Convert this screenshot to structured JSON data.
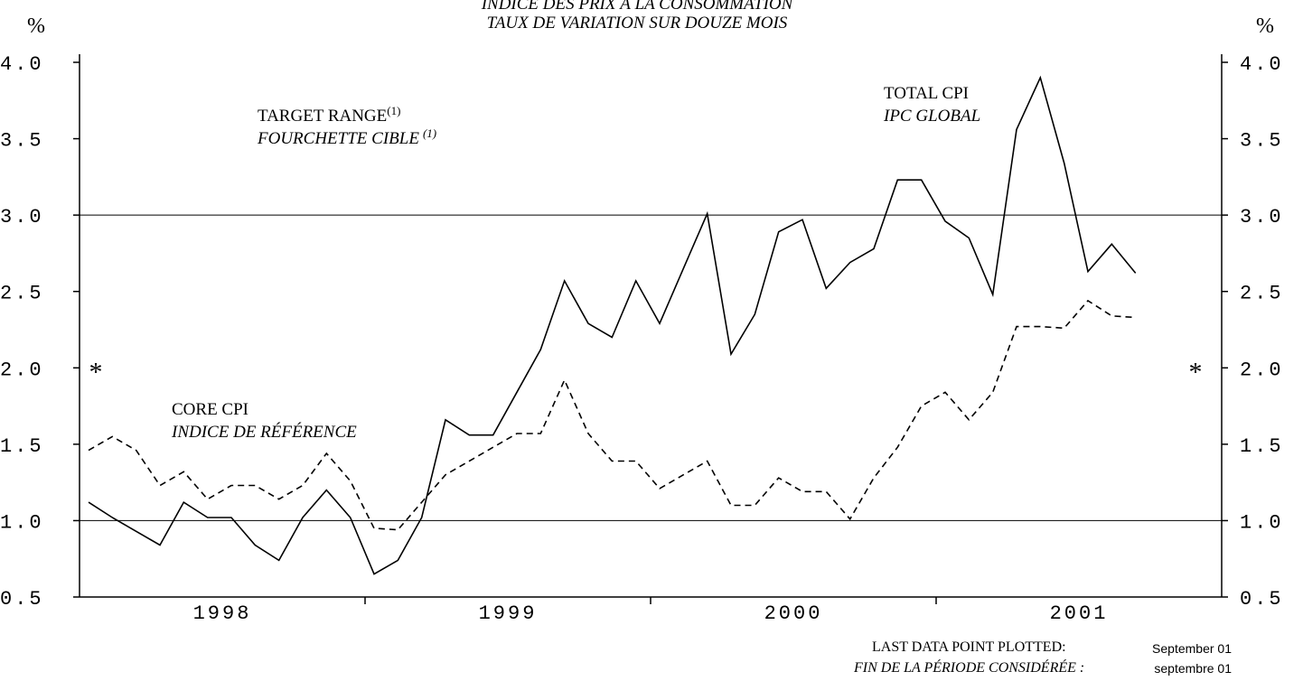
{
  "chart_data": {
    "type": "line",
    "title": "INDICE DES PRIX À LA CONSOMMATION",
    "subtitle": "TAUX DE VARIATION SUR DOUZE MOIS",
    "y_unit_left": "%",
    "y_unit_right": "%",
    "years": [
      "1998",
      "1999",
      "2000",
      "2001"
    ],
    "categories": [
      null,
      null,
      null,
      null,
      null,
      null,
      null,
      null,
      null,
      null,
      null,
      null,
      null,
      null,
      null,
      null,
      null,
      null,
      null,
      null,
      null,
      null,
      null,
      null,
      null,
      null,
      null,
      null,
      null,
      null,
      null,
      null,
      null,
      null,
      null,
      null,
      null,
      null,
      null,
      null,
      null,
      null,
      null,
      null,
      null
    ],
    "series": [
      {
        "name": "TOTAL CPI",
        "name_fr": "IPC GLOBAL",
        "color": "#000000",
        "dash": "solid",
        "values": [
          1.12,
          1.02,
          0.93,
          0.84,
          1.12,
          1.02,
          1.02,
          0.84,
          0.74,
          1.02,
          1.2,
          1.02,
          0.65,
          0.74,
          1.02,
          1.66,
          1.56,
          1.56,
          1.84,
          2.12,
          2.57,
          2.29,
          2.2,
          2.57,
          2.29,
          2.65,
          3.01,
          2.09,
          2.35,
          2.89,
          2.97,
          2.52,
          2.69,
          2.78,
          3.23,
          3.23,
          2.96,
          2.85,
          2.48,
          3.56,
          3.9,
          3.34,
          2.63,
          2.81,
          2.62
        ]
      },
      {
        "name": "CORE CPI",
        "name_fr": "INDICE DE RÉFÉRENCE",
        "color": "#000000",
        "dash": "dashed",
        "values": [
          1.46,
          1.55,
          1.46,
          1.23,
          1.32,
          1.14,
          1.23,
          1.23,
          1.14,
          1.23,
          1.44,
          1.26,
          0.95,
          0.94,
          1.12,
          1.3,
          1.39,
          1.48,
          1.57,
          1.57,
          1.92,
          1.57,
          1.39,
          1.39,
          1.21,
          1.3,
          1.39,
          1.1,
          1.1,
          1.28,
          1.19,
          1.19,
          1.01,
          1.28,
          1.48,
          1.75,
          1.84,
          1.66,
          1.84,
          2.27,
          2.27,
          2.26,
          2.44,
          2.34,
          2.33
        ]
      }
    ],
    "target_range": [
      1,
      3
    ],
    "target_label": "TARGET RANGE",
    "target_label_fr": "FOURCHETTE CIBLE",
    "target_note": "(1)",
    "marker_symbol": "*",
    "marker_value": 2,
    "ylim": [
      0.5,
      4
    ],
    "y2lim": [
      0.5,
      4
    ],
    "yticks": [
      0.5,
      {
        "value": 1,
        "label": "1.0"
      },
      1.5,
      {
        "value": 2,
        "label": "2.0"
      },
      2.5,
      {
        "value": 3,
        "label": "3.0"
      },
      3.5,
      {
        "value": 4,
        "label": "4.0"
      }
    ],
    "y2ticks": [
      0.5,
      {
        "value": 1,
        "label": "1.0"
      },
      1.5,
      {
        "value": 2,
        "label": "2.0"
      },
      2.5,
      {
        "value": 3,
        "label": "3.0"
      },
      3.5,
      {
        "value": 4,
        "label": "4.0"
      }
    ],
    "footer": {
      "label": "LAST DATA POINT PLOTTED:",
      "label_fr": "FIN DE LA PÉRIODE CONSIDÉRÉE :",
      "value": "September 01",
      "value_fr": "septembre 01"
    }
  }
}
